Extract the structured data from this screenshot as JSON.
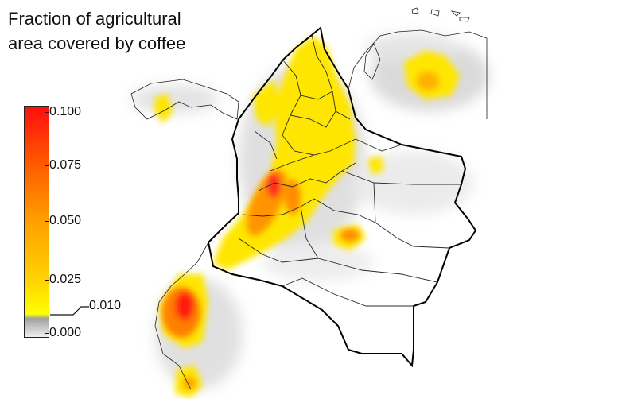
{
  "title": {
    "line1": "Fraction of agricultural",
    "line2": "area covered by coffee"
  },
  "legend": {
    "ticks": [
      "0.100",
      "0.075",
      "0.050",
      "0.025",
      "0.000"
    ],
    "threshold_label": "0.010",
    "colors": {
      "zero": "#e6e6e6",
      "low": "#a0a0a0",
      "threshold": "#ffff00",
      "mid": "#ff9b00",
      "high": "#ff1010"
    }
  },
  "map": {
    "region": "Colombia and neighbouring countries",
    "colors": {
      "national_border": "#000000",
      "admin_border": "#333333",
      "background": "#ffffff"
    }
  }
}
